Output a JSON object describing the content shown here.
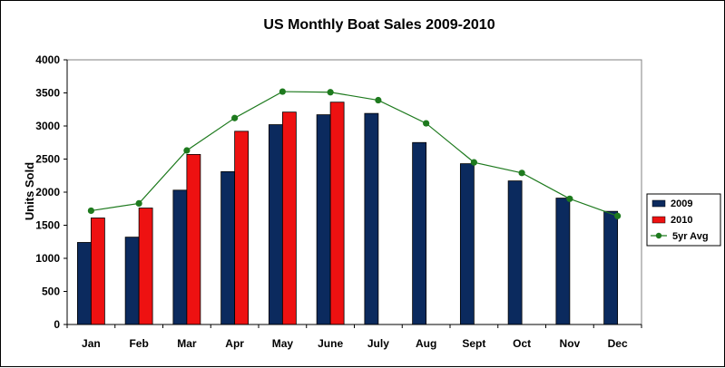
{
  "chart_data": {
    "type": "bar",
    "title": "US Monthly Boat Sales 2009-2010",
    "xlabel": "",
    "ylabel": "Units Sold",
    "ylim": [
      0,
      4000
    ],
    "yticks": [
      0,
      500,
      1000,
      1500,
      2000,
      2500,
      3000,
      3500,
      4000
    ],
    "categories": [
      "Jan",
      "Feb",
      "Mar",
      "Apr",
      "May",
      "June",
      "July",
      "Aug",
      "Sept",
      "Oct",
      "Nov",
      "Dec"
    ],
    "series": [
      {
        "name": "2009",
        "kind": "bar",
        "color": "#0b2a5e",
        "values": [
          1240,
          1320,
          2030,
          2310,
          3020,
          3170,
          3190,
          2750,
          2430,
          2170,
          1910,
          1710
        ]
      },
      {
        "name": "2010",
        "kind": "bar",
        "color": "#ee1111",
        "values": [
          1610,
          1760,
          2570,
          2920,
          3210,
          3360,
          null,
          null,
          null,
          null,
          null,
          null
        ]
      },
      {
        "name": "5yr Avg",
        "kind": "line",
        "color": "#1e7a1e",
        "values": [
          1720,
          1830,
          2630,
          3120,
          3520,
          3510,
          3390,
          3040,
          2450,
          2290,
          1900,
          1640
        ]
      }
    ],
    "grid": false,
    "legend": "right"
  }
}
